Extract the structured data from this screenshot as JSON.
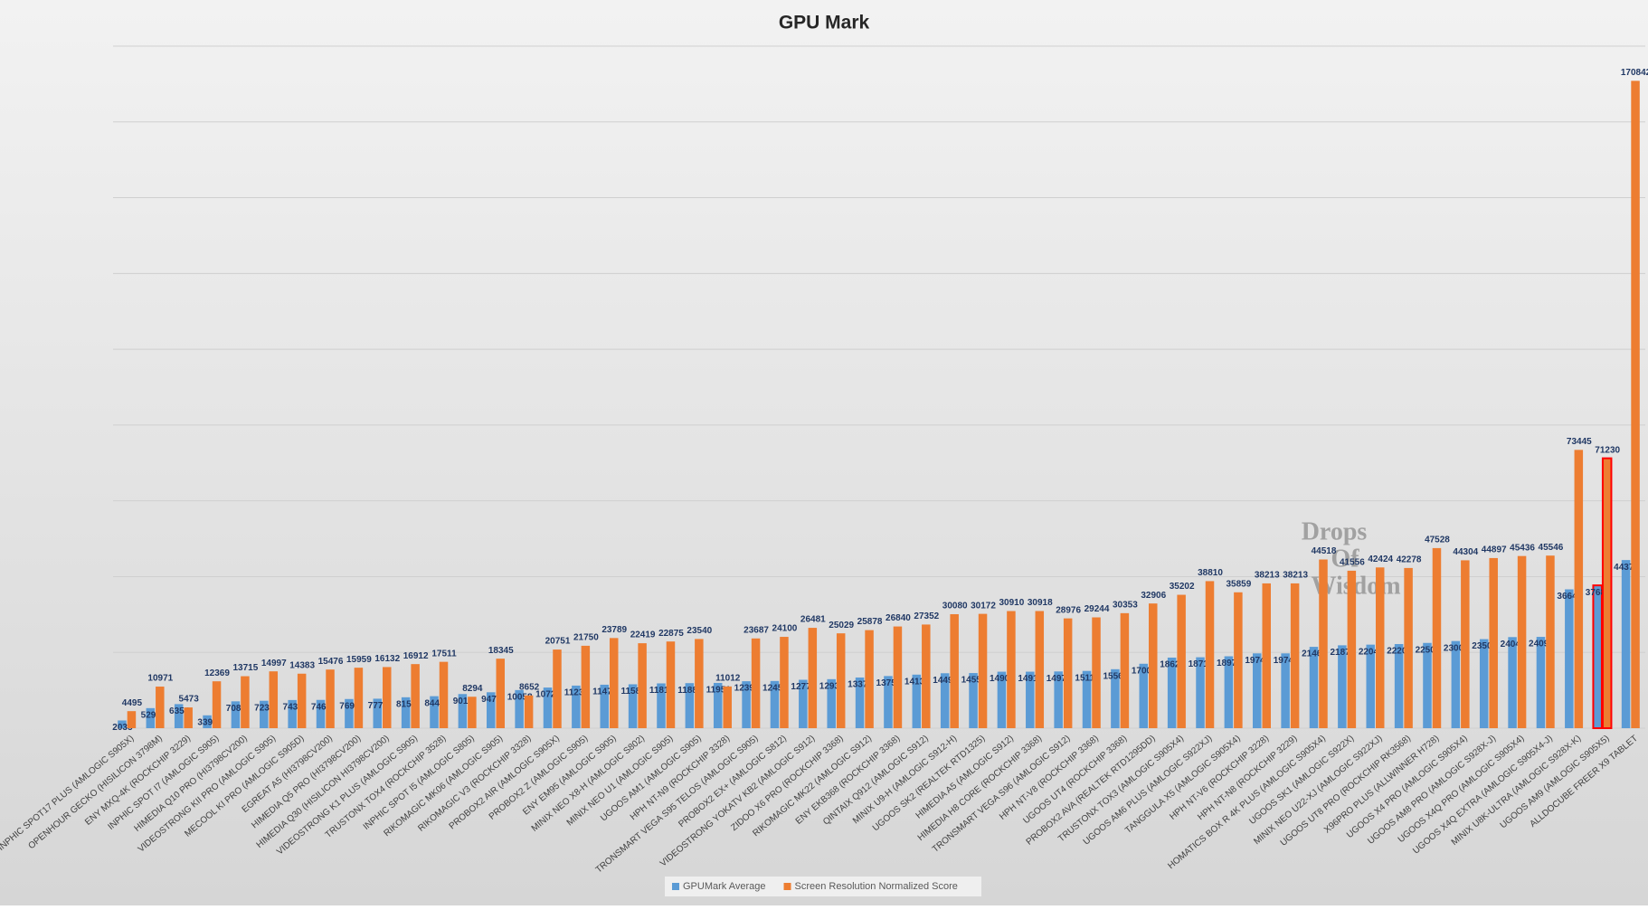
{
  "chart_data": {
    "type": "bar",
    "title": "GPU Mark",
    "categories": [
      "INPHIC SPOT17 PLUS (AMLOGIC S905X)",
      "OPENHOUR GECKO (HISILICON 3798M)",
      "ENY MXQ-4K (ROCKCHIP 3229)",
      "INPHIC SPOT I7 (AMLOGIC S905)",
      "HIMEDIA Q10 PRO (HI3798CV200)",
      "VIDEOSTRONG KII PRO (AMLOGIC S905)",
      "MECOOL KI PRO (AMLOGIC S905D)",
      "EGREAT A5 (HI3798CV200)",
      "HIMEDIA Q5 PRO (HI3798CV200)",
      "HIMEDIA Q30 (HISILICON HI3798CV200)",
      "VIDEOSTRONG K1 PLUS (AMLOGIC S905)",
      "TRUSTONX TOX4 (ROCKCHIP 3528)",
      "INPHIC SPOT I5 (AMLOGIC S805)",
      "RIKOMAGIC MK06 (AMLOGIC S905)",
      "RIKOMAGIC V3 (ROCKCHIP 3328)",
      "PROBOX2 AIR (AMLOGIC S905X)",
      "PROBOX2 Z (AMLOGIC S905)",
      "ENY EM95 (AMLOGIC S905)",
      "MINIX NEO X8-H (AMLOGIC S802)",
      "MINIX NEO U1 (AMLOGIC S905)",
      "UGOOS AM1 (AMLOGIC S905)",
      "HPH NT-N9 (ROCKCHIP 3328)",
      "TRONSMART VEGA S95 TELOS (AMLOGIC S905)",
      "PROBOX2 EX+ (AMLOGIC S812)",
      "VIDEOSTRONG YOKATV KB2 (AMLOGIC S912)",
      "ZIDOO X6 PRO (ROCKCHIP 3368)",
      "RIKOMAGIC MK22 (AMLOGIC S912)",
      "ENY EKB368 (ROCKCHIP 3368)",
      "QINTAIX Q912 (AMLOGIC S912)",
      "MINIX U9-H (AMLOGIC S912-H)",
      "UGOOS SK2 (REALTEK RTD1325)",
      "HIMEDIA A5 (AMLOGIC S912)",
      "HIMEDIA H8 CORE (ROCKCHIP 3368)",
      "TRONSMART VEGA S96 (AMLOGIC S912)",
      "HPH NT-V8 (ROCKCHIP 3368)",
      "UGOOS UT4 (ROCKCHIP 3368)",
      "PROBOX2 AVA (REALTEK RTD1295DD)",
      "TRUSTONX TOX3 (AMLOGIC S905X4)",
      "UGOOS AM6 PLUS (AMLOGIC S922XJ)",
      "TANGGULA X5 (AMLOGIC S905X4)",
      "HPH NT-V6 (ROCKCHIP 3228)",
      "HPH NT-N8 (ROCKCHIP 3229)",
      "HOMATICS BOX R 4K PLUS (AMLOGIC S905X4)",
      "UGOOS SK1 (AMLOGIC S922X)",
      "MINIX NEO U22-XJ (AMLOGIC S922XJ)",
      "UGOOS UT8 PRO (ROCKCHIP RK3568)",
      "X96PRO PLUS (ALLWINNER H728)",
      "UGOOS X4 PRO (AMLOGIC S905X4)",
      "UGOOS AM8 PRO (AMLOGIC S928X-J)",
      "UGOOS X4Q PRO (AMLOGIC S905X4)",
      "UGOOS X4Q EXTRA (AMLOGIC S905X4-J)",
      "MINIX U8K-ULTRA (AMLOGIC S928X-K)",
      "UGOOS AM9 (AMLOGIC S905X5)",
      "ALLDOCUBE FREER X9 TABLET"
    ],
    "series": [
      {
        "name": "GPUMark Average",
        "color": "#5b9bd5",
        "values": [
          2035,
          5291,
          6354,
          3391,
          7086,
          7232,
          7431,
          7463,
          7696,
          7779,
          8156,
          8444,
          9010,
          9479,
          10058,
          10722,
          11238,
          11472,
          11584,
          11819,
          11887,
          11951,
          12391,
          12452,
          12771,
          12932,
          13371,
          13759,
          14133,
          14497,
          14550,
          14907,
          14910,
          14972,
          15110,
          15560,
          17002,
          18626,
          18716,
          18973,
          19745,
          19745,
          21467,
          21873,
          22048,
          22200,
          22500,
          23000,
          23500,
          24040,
          24098,
          36640,
          37688,
          44372
        ]
      },
      {
        "name": "Screen Resolution Normalized Score",
        "color": "#ed7d31",
        "values": [
          4495,
          10971,
          5473,
          12369,
          13715,
          14997,
          14383,
          15476,
          15959,
          16132,
          16912,
          17511,
          8294,
          18345,
          8652,
          20751,
          21750,
          23789,
          22419,
          22875,
          23540,
          11012,
          23687,
          24100,
          26481,
          25029,
          25878,
          26840,
          27352,
          30080,
          30172,
          30910,
          30918,
          28976,
          29244,
          30353,
          32906,
          35202,
          38810,
          35859,
          38213,
          38213,
          44518,
          41556,
          42424,
          42278,
          47528,
          44304,
          44897,
          45436,
          45546,
          73445,
          71230,
          170842
        ]
      }
    ],
    "ylim": [
      0,
      180000
    ],
    "yticks": [
      0,
      20000,
      40000,
      60000,
      80000,
      100000,
      120000,
      140000,
      160000,
      180000
    ],
    "grid": true,
    "highlight": {
      "category": "UGOOS AM9 (AMLOGIC S905X5)",
      "color": "#ff0000"
    },
    "watermark": [
      "Drops",
      "Of",
      "Wisdom"
    ]
  }
}
